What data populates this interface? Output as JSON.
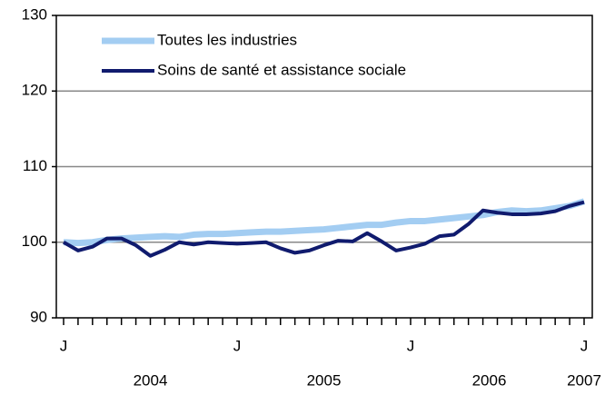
{
  "chart_data": {
    "type": "line",
    "categories": [
      "J",
      null,
      null,
      null,
      null,
      null,
      null,
      null,
      null,
      null,
      null,
      null,
      "J",
      null,
      null,
      null,
      null,
      null,
      null,
      null,
      null,
      null,
      null,
      null,
      "J",
      null,
      null,
      null,
      null,
      null,
      null,
      null,
      null,
      null,
      null,
      null,
      "J"
    ],
    "years": [
      "2004",
      "2005",
      "2006",
      "2007"
    ],
    "series": [
      {
        "name": "Toutes les industries",
        "color": "#a3cdf2",
        "values": [
          100,
          99.9,
          100,
          100.3,
          100.5,
          100.6,
          100.7,
          100.8,
          100.7,
          101,
          101.1,
          101.1,
          101.2,
          101.3,
          101.4,
          101.4,
          101.5,
          101.6,
          101.7,
          101.9,
          102.1,
          102.3,
          102.3,
          102.6,
          102.8,
          102.8,
          103,
          103.2,
          103.4,
          103.6,
          104,
          104.2,
          104.1,
          104.2,
          104.5,
          104.8,
          105.4
        ]
      },
      {
        "name": "Soins de santé et assistance sociale",
        "color": "#101b6e",
        "values": [
          100,
          98.9,
          99.4,
          100.5,
          100.5,
          99.6,
          98.2,
          99,
          100,
          99.7,
          100,
          99.9,
          99.8,
          99.9,
          100,
          99.2,
          98.6,
          98.9,
          99.6,
          100.2,
          100.1,
          101.2,
          100.1,
          98.9,
          99.3,
          99.8,
          100.8,
          101,
          102.4,
          104.2,
          103.9,
          103.7,
          103.7,
          103.8,
          104.1,
          104.8,
          105.3
        ]
      }
    ],
    "ylim": [
      90,
      130
    ],
    "yticks": [
      90,
      100,
      110,
      120,
      130
    ],
    "grid": true
  }
}
